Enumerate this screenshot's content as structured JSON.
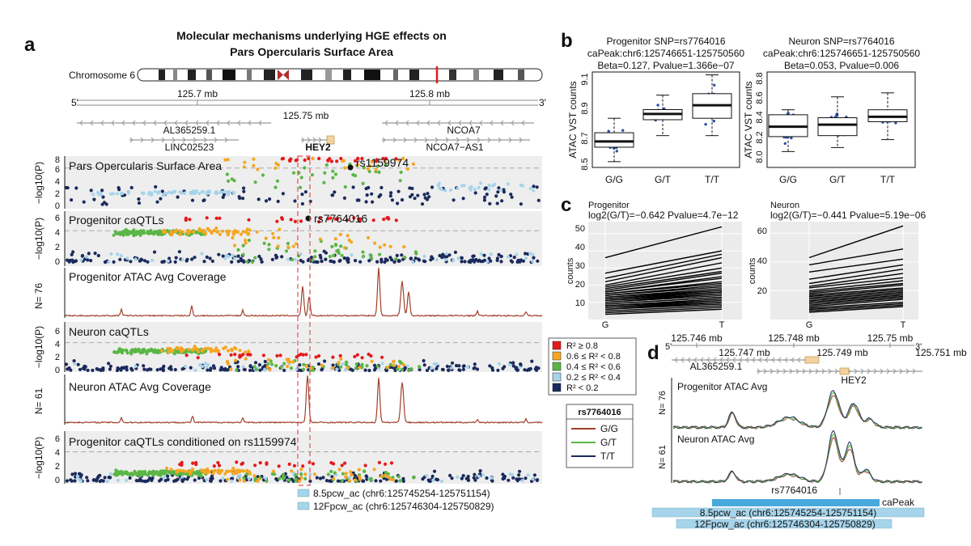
{
  "panel_labels": {
    "a": "a",
    "b": "b",
    "c": "c",
    "d": "d"
  },
  "colors": {
    "r2_high": "#e41a1c",
    "r2_mid_high": "#f5a623",
    "r2_mid": "#5ab646",
    "r2_low": "#a6d4ea",
    "r2_lowest": "#1b2a5c",
    "coverage": "#a0402b",
    "band": "#eeeeee",
    "caPeak": "#4aa9dc",
    "pcw": "#a6d4ea",
    "highlight": "#e05050"
  },
  "panel_a": {
    "title_line1": "Molecular mechanisms underlying HGE effects on",
    "title_line2": "Pars Opercularis Surface Area",
    "chromosome": "Chromosome 6",
    "five_prime": "5'",
    "three_prime": "3'",
    "axis_ticks": [
      "125.7 mb",
      "125.75 mb",
      "125.8 mb"
    ],
    "genes": [
      "AL365259.1",
      "LINC02523",
      "HEY2",
      "NCOA7",
      "NCOA7−AS1"
    ],
    "tracks": [
      {
        "title": "Pars Opercularis Surface Area",
        "ylabel": "−log10(P)",
        "ticks": [
          "0",
          "2",
          "4",
          "6",
          "8"
        ],
        "lead_snp": "rs1159974"
      },
      {
        "title": "Progenitor caQTLs",
        "ylabel": "−log10(P)",
        "ticks": [
          "0",
          "2",
          "4",
          "6"
        ],
        "lead_snp": "rs7764016"
      },
      {
        "title": "Progenitor ATAC Avg Coverage",
        "ylabel": "N= 76"
      },
      {
        "title": "Neuron caQTLs",
        "ylabel": "−log10(P)",
        "ticks": [
          "0",
          "2",
          "4",
          "6"
        ]
      },
      {
        "title": "Neuron ATAC Avg Coverage",
        "ylabel": "N= 61"
      },
      {
        "title": "Progenitor caQTLs conditioned on rs1159974",
        "ylabel": "−log10(P)",
        "ticks": [
          "0",
          "2",
          "4",
          "6"
        ]
      }
    ],
    "pcw_legend": [
      "8.5pcw_ac (chr6:125745254-125751154)",
      "12Fpcw_ac (chr6:125746304-125750829)"
    ]
  },
  "r2_legend": [
    "R² ≥ 0.8",
    "0.6 ≤ R² < 0.8",
    "0.4 ≤ R² < 0.6",
    "0.2 ≤ R² < 0.4",
    "R² < 0.2"
  ],
  "genotype_legend": {
    "title": "rs7764016",
    "items": [
      "G/G",
      "G/T",
      "T/T"
    ],
    "colors": [
      "#a0402b",
      "#5ab646",
      "#1b2a5c"
    ]
  },
  "panel_b": {
    "ylabel": "ATAC VST counts",
    "charts": [
      {
        "line1": "Progenitor SNP=rs7764016",
        "line2": "caPeak:chr6:125746651-125750560",
        "line3": "Beta=0.127, Pvalue=1.366e−07",
        "ticks": [
          "8.5",
          "8.7",
          "8.9",
          "9.1"
        ]
      },
      {
        "line1": "Neuron SNP=rs7764016",
        "line2": "caPeak:chr6:125746651-125750560",
        "line3": "Beta=0.053, Pvalue=0.006",
        "ticks": [
          "8.0",
          "8.2",
          "8.4",
          "8.6",
          "8.8"
        ]
      }
    ]
  },
  "panel_c": {
    "ylabel": "counts",
    "charts": [
      {
        "title": "Progenitor",
        "stat": "log2(G/T)=−0.642 Pvalue=4.7e−12",
        "ticks": [
          "10",
          "20",
          "30",
          "40",
          "50"
        ]
      },
      {
        "title": "Neuron",
        "stat": "log2(G/T)=−0.441 Pvalue=5.19e−06",
        "ticks": [
          "20",
          "40",
          "60"
        ]
      }
    ]
  },
  "panel_d": {
    "five_prime": "5'",
    "three_prime": "3'",
    "top_ticks": [
      "125.746 mb",
      "125.748 mb",
      "125.75 mb"
    ],
    "bottom_ticks": [
      "125.747 mb",
      "125.749 mb",
      "125.751 mb"
    ],
    "genes": [
      "AL365259.1",
      "HEY2"
    ],
    "tracks": [
      {
        "title": "Progenitor ATAC Avg",
        "ylabel": "N= 76"
      },
      {
        "title": "Neuron ATAC Avg",
        "ylabel": "N= 61"
      }
    ],
    "snp": "rs7764016",
    "capeak_label": "caPeak",
    "pcw_bars": [
      "8.5pcw_ac (chr6:125745254-125751154)",
      "12Fpcw_ac (chr6:125746304-125750829)"
    ]
  },
  "chart_data": [
    {
      "type": "box",
      "title": "Progenitor SNP=rs7764016",
      "ylabel": "ATAC VST counts",
      "categories": [
        "G/G",
        "G/T",
        "T/T"
      ],
      "ylim": [
        8.48,
        9.14
      ],
      "boxes": [
        {
          "min": 8.52,
          "q1": 8.62,
          "median": 8.66,
          "q3": 8.72,
          "max": 8.82
        },
        {
          "min": 8.7,
          "q1": 8.81,
          "median": 8.85,
          "q3": 8.88,
          "max": 8.98
        },
        {
          "min": 8.7,
          "q1": 8.82,
          "median": 8.91,
          "q3": 8.99,
          "max": 9.12
        }
      ]
    },
    {
      "type": "box",
      "title": "Neuron SNP=rs7764016",
      "ylabel": "ATAC VST counts",
      "categories": [
        "G/G",
        "G/T",
        "T/T"
      ],
      "ylim": [
        7.92,
        8.88
      ],
      "boxes": [
        {
          "min": 8.08,
          "q1": 8.23,
          "median": 8.33,
          "q3": 8.45,
          "max": 8.5
        },
        {
          "min": 8.12,
          "q1": 8.24,
          "median": 8.35,
          "q3": 8.42,
          "max": 8.63
        },
        {
          "min": 8.2,
          "q1": 8.38,
          "median": 8.43,
          "q3": 8.5,
          "max": 8.67
        }
      ]
    },
    {
      "type": "line",
      "title": "Progenitor",
      "ylabel": "counts",
      "categories": [
        "G",
        "T"
      ],
      "ylim": [
        0,
        57
      ],
      "pairs": [
        [
          36,
          54
        ],
        [
          27,
          40
        ],
        [
          24,
          38
        ],
        [
          22,
          36
        ],
        [
          20,
          33
        ],
        [
          19,
          30
        ],
        [
          18,
          28
        ],
        [
          17,
          27
        ],
        [
          16,
          25
        ],
        [
          16,
          24
        ],
        [
          15,
          22
        ],
        [
          15,
          21
        ],
        [
          14,
          20
        ],
        [
          14,
          19
        ],
        [
          13,
          18
        ],
        [
          13,
          17
        ],
        [
          12,
          17
        ],
        [
          12,
          16
        ],
        [
          11,
          16
        ],
        [
          11,
          15
        ],
        [
          10,
          15
        ],
        [
          10,
          14
        ],
        [
          9,
          13
        ],
        [
          9,
          13
        ],
        [
          8,
          12
        ],
        [
          8,
          11
        ],
        [
          7,
          11
        ],
        [
          7,
          10
        ],
        [
          6,
          10
        ],
        [
          6,
          9
        ],
        [
          5,
          8
        ],
        [
          4,
          7
        ],
        [
          3,
          6
        ]
      ]
    },
    {
      "type": "line",
      "title": "Neuron",
      "ylabel": "counts",
      "categories": [
        "G",
        "T"
      ],
      "ylim": [
        0,
        68
      ],
      "pairs": [
        [
          43,
          65
        ],
        [
          38,
          49
        ],
        [
          33,
          42
        ],
        [
          28,
          38
        ],
        [
          25,
          35
        ],
        [
          23,
          32
        ],
        [
          22,
          29
        ],
        [
          20,
          27
        ],
        [
          19,
          25
        ],
        [
          18,
          24
        ],
        [
          17,
          22
        ],
        [
          16,
          21
        ],
        [
          15,
          20
        ],
        [
          14,
          19
        ],
        [
          13,
          18
        ],
        [
          12,
          17
        ],
        [
          11,
          16
        ],
        [
          10,
          15
        ],
        [
          9,
          14
        ],
        [
          8,
          12
        ],
        [
          7,
          11
        ],
        [
          6,
          10
        ],
        [
          5,
          9
        ]
      ]
    }
  ]
}
